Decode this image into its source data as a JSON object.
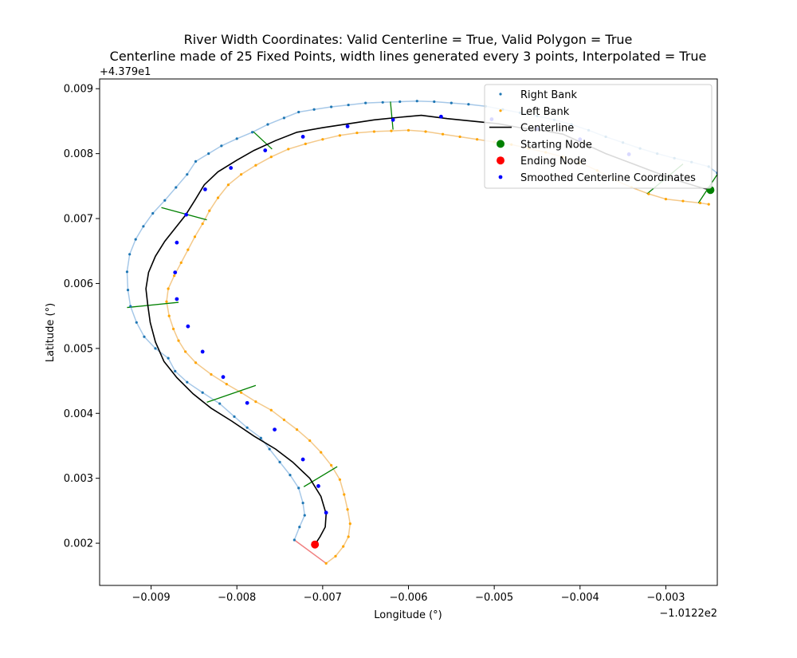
{
  "chart_data": {
    "type": "line",
    "title_line1": "River Width Coordinates: Valid Centerline = True, Valid Polygon = True",
    "title_line2": "Centerline made of 25 Fixed Points, width lines generated every 3 points, Interpolated = True",
    "xlabel": "Longitude (°)",
    "ylabel": "Latitude (°)",
    "x_offset_text": "−1.0122e2",
    "y_offset_text": "+4.379e1",
    "xlim": [
      -0.0096,
      -0.0024
    ],
    "ylim": [
      0.00135,
      0.00915
    ],
    "x_ticks": [
      -0.009,
      -0.008,
      -0.007,
      -0.006,
      -0.005,
      -0.004,
      -0.003
    ],
    "x_tick_labels": [
      "−0.009",
      "−0.008",
      "−0.007",
      "−0.006",
      "−0.005",
      "−0.004",
      "−0.003"
    ],
    "y_ticks": [
      0.002,
      0.003,
      0.004,
      0.005,
      0.006,
      0.007,
      0.008,
      0.009
    ],
    "y_tick_labels": [
      "0.002",
      "0.003",
      "0.004",
      "0.005",
      "0.006",
      "0.007",
      "0.008",
      "0.009"
    ],
    "legend_position": "upper right",
    "legend": [
      {
        "label": "Right Bank",
        "marker": "small-dot",
        "color": "#1f77b4"
      },
      {
        "label": "Left Bank",
        "marker": "small-dot",
        "color": "#ffa500"
      },
      {
        "label": "Centerline",
        "marker": "line",
        "color": "#000000"
      },
      {
        "label": "Starting Node",
        "marker": "big-dot",
        "color": "#008000"
      },
      {
        "label": "Ending Node",
        "marker": "big-dot",
        "color": "#ff0000"
      },
      {
        "label": "Smoothed Centerline Coordinates",
        "marker": "dot",
        "color": "#0000ff"
      }
    ],
    "colors": {
      "right_bank": "#1f77b4",
      "left_bank": "#ffa500",
      "right_bank_line": "#a6c8e8",
      "left_bank_line": "#f4c98a",
      "centerline": "#000000",
      "width_lines": "#008000",
      "end_connector": "#f08080",
      "start_node": "#008000",
      "end_node": "#ff0000",
      "smoothed": "#0000ff"
    },
    "right_bank": [
      [
        -0.00733,
        0.00205
      ],
      [
        -0.00727,
        0.00225
      ],
      [
        -0.00721,
        0.00243
      ],
      [
        -0.00723,
        0.00262
      ],
      [
        -0.00728,
        0.00285
      ],
      [
        -0.00738,
        0.00305
      ],
      [
        -0.0075,
        0.00325
      ],
      [
        -0.00762,
        0.00345
      ],
      [
        -0.00772,
        0.00362
      ],
      [
        -0.00788,
        0.00378
      ],
      [
        -0.00803,
        0.00395
      ],
      [
        -0.0082,
        0.00415
      ],
      [
        -0.0084,
        0.00432
      ],
      [
        -0.00858,
        0.00448
      ],
      [
        -0.00872,
        0.00465
      ],
      [
        -0.0088,
        0.00485
      ],
      [
        -0.00895,
        0.005
      ],
      [
        -0.00908,
        0.00518
      ],
      [
        -0.00917,
        0.0054
      ],
      [
        -0.00924,
        0.00565
      ],
      [
        -0.00927,
        0.0059
      ],
      [
        -0.00928,
        0.00618
      ],
      [
        -0.00925,
        0.00645
      ],
      [
        -0.00918,
        0.00668
      ],
      [
        -0.00909,
        0.00688
      ],
      [
        -0.00898,
        0.00708
      ],
      [
        -0.00884,
        0.00728
      ],
      [
        -0.00871,
        0.00748
      ],
      [
        -0.00858,
        0.00768
      ],
      [
        -0.00848,
        0.00788
      ],
      [
        -0.00833,
        0.008
      ],
      [
        -0.00818,
        0.00812
      ],
      [
        -0.008,
        0.00823
      ],
      [
        -0.00782,
        0.00833
      ],
      [
        -0.00764,
        0.00845
      ],
      [
        -0.00745,
        0.00855
      ],
      [
        -0.00728,
        0.00864
      ],
      [
        -0.0071,
        0.00868
      ],
      [
        -0.0069,
        0.00872
      ],
      [
        -0.0067,
        0.00875
      ],
      [
        -0.0065,
        0.00878
      ],
      [
        -0.0063,
        0.00879
      ],
      [
        -0.0061,
        0.0088
      ],
      [
        -0.0059,
        0.00881
      ],
      [
        -0.0057,
        0.0088
      ],
      [
        -0.0055,
        0.00878
      ],
      [
        -0.0053,
        0.00876
      ],
      [
        -0.0051,
        0.00873
      ],
      [
        -0.0049,
        0.00868
      ],
      [
        -0.0047,
        0.00863
      ],
      [
        -0.0045,
        0.00858
      ],
      [
        -0.0043,
        0.00852
      ],
      [
        -0.0041,
        0.00845
      ],
      [
        -0.0039,
        0.00836
      ],
      [
        -0.0037,
        0.00826
      ],
      [
        -0.0035,
        0.00817
      ],
      [
        -0.0033,
        0.00808
      ],
      [
        -0.0031,
        0.008
      ],
      [
        -0.0029,
        0.00793
      ],
      [
        -0.0027,
        0.00787
      ],
      [
        -0.0025,
        0.0078
      ],
      [
        -0.0024,
        0.0077
      ]
    ],
    "left_bank": [
      [
        -0.00696,
        0.00169
      ],
      [
        -0.00685,
        0.0018
      ],
      [
        -0.00676,
        0.00195
      ],
      [
        -0.0067,
        0.0021
      ],
      [
        -0.00668,
        0.0023
      ],
      [
        -0.00671,
        0.00252
      ],
      [
        -0.00675,
        0.00275
      ],
      [
        -0.0068,
        0.00298
      ],
      [
        -0.0069,
        0.0032
      ],
      [
        -0.00702,
        0.0034
      ],
      [
        -0.00715,
        0.00358
      ],
      [
        -0.0073,
        0.00375
      ],
      [
        -0.00745,
        0.0039
      ],
      [
        -0.0076,
        0.00405
      ],
      [
        -0.00778,
        0.00418
      ],
      [
        -0.00795,
        0.00432
      ],
      [
        -0.00812,
        0.00445
      ],
      [
        -0.0083,
        0.0046
      ],
      [
        -0.00848,
        0.00478
      ],
      [
        -0.0086,
        0.00495
      ],
      [
        -0.00868,
        0.00512
      ],
      [
        -0.00874,
        0.0053
      ],
      [
        -0.00879,
        0.0055
      ],
      [
        -0.00882,
        0.00572
      ],
      [
        -0.0088,
        0.00592
      ],
      [
        -0.00873,
        0.00612
      ],
      [
        -0.00865,
        0.00632
      ],
      [
        -0.00857,
        0.00652
      ],
      [
        -0.00849,
        0.00672
      ],
      [
        -0.0084,
        0.00692
      ],
      [
        -0.00832,
        0.00712
      ],
      [
        -0.00822,
        0.00732
      ],
      [
        -0.0081,
        0.00752
      ],
      [
        -0.00795,
        0.00768
      ],
      [
        -0.00778,
        0.00782
      ],
      [
        -0.0076,
        0.00795
      ],
      [
        -0.0074,
        0.00807
      ],
      [
        -0.0072,
        0.00815
      ],
      [
        -0.007,
        0.00822
      ],
      [
        -0.0068,
        0.00828
      ],
      [
        -0.0066,
        0.00832
      ],
      [
        -0.0064,
        0.00834
      ],
      [
        -0.0062,
        0.00835
      ],
      [
        -0.006,
        0.00836
      ],
      [
        -0.0058,
        0.00834
      ],
      [
        -0.0056,
        0.0083
      ],
      [
        -0.0054,
        0.00826
      ],
      [
        -0.0052,
        0.00822
      ],
      [
        -0.005,
        0.00818
      ],
      [
        -0.0048,
        0.00814
      ],
      [
        -0.0046,
        0.00808
      ],
      [
        -0.0044,
        0.00802
      ],
      [
        -0.0042,
        0.00795
      ],
      [
        -0.004,
        0.00786
      ],
      [
        -0.0038,
        0.00774
      ],
      [
        -0.0036,
        0.0076
      ],
      [
        -0.0034,
        0.00748
      ],
      [
        -0.0032,
        0.00738
      ],
      [
        -0.003,
        0.0073
      ],
      [
        -0.0028,
        0.00727
      ],
      [
        -0.0026,
        0.00724
      ],
      [
        -0.0025,
        0.00722
      ]
    ],
    "centerline": [
      [
        -0.00709,
        0.00198
      ],
      [
        -0.00703,
        0.0021
      ],
      [
        -0.00697,
        0.00225
      ],
      [
        -0.00696,
        0.00245
      ],
      [
        -0.00702,
        0.00272
      ],
      [
        -0.00715,
        0.003
      ],
      [
        -0.00735,
        0.00325
      ],
      [
        -0.00755,
        0.00345
      ],
      [
        -0.0078,
        0.00365
      ],
      [
        -0.00806,
        0.00388
      ],
      [
        -0.0083,
        0.00408
      ],
      [
        -0.00851,
        0.0043
      ],
      [
        -0.0087,
        0.00455
      ],
      [
        -0.00885,
        0.0048
      ],
      [
        -0.00895,
        0.0051
      ],
      [
        -0.00901,
        0.0054
      ],
      [
        -0.00904,
        0.00568
      ],
      [
        -0.00906,
        0.00592
      ],
      [
        -0.00903,
        0.00617
      ],
      [
        -0.00895,
        0.00642
      ],
      [
        -0.00884,
        0.00665
      ],
      [
        -0.00872,
        0.00685
      ],
      [
        -0.0086,
        0.00705
      ],
      [
        -0.00849,
        0.00728
      ],
      [
        -0.00838,
        0.00752
      ],
      [
        -0.00822,
        0.00772
      ],
      [
        -0.008,
        0.0079
      ],
      [
        -0.0078,
        0.00805
      ],
      [
        -0.00755,
        0.0082
      ],
      [
        -0.0073,
        0.00833
      ],
      [
        -0.007,
        0.0084
      ],
      [
        -0.0067,
        0.00846
      ],
      [
        -0.0064,
        0.00852
      ],
      [
        -0.0061,
        0.00856
      ],
      [
        -0.00585,
        0.00859
      ],
      [
        -0.00555,
        0.00854
      ],
      [
        -0.00525,
        0.0085
      ],
      [
        -0.00495,
        0.00846
      ],
      [
        -0.0047,
        0.0084
      ],
      [
        -0.00445,
        0.00836
      ],
      [
        -0.0042,
        0.0083
      ],
      [
        -0.00395,
        0.00815
      ],
      [
        -0.0037,
        0.008
      ],
      [
        -0.0034,
        0.00785
      ],
      [
        -0.0031,
        0.0077
      ],
      [
        -0.00285,
        0.00758
      ],
      [
        -0.0026,
        0.00748
      ],
      [
        -0.00248,
        0.00744
      ]
    ],
    "smoothed_centerline": [
      [
        -0.00709,
        0.00198
      ],
      [
        -0.00696,
        0.00247
      ],
      [
        -0.00705,
        0.00288
      ],
      [
        -0.00723,
        0.00329
      ],
      [
        -0.00756,
        0.00375
      ],
      [
        -0.00788,
        0.00416
      ],
      [
        -0.00816,
        0.00456
      ],
      [
        -0.0084,
        0.00495
      ],
      [
        -0.00857,
        0.00534
      ],
      [
        -0.0087,
        0.00576
      ],
      [
        -0.00872,
        0.00617
      ],
      [
        -0.0087,
        0.00663
      ],
      [
        -0.00859,
        0.00706
      ],
      [
        -0.00837,
        0.00745
      ],
      [
        -0.00807,
        0.00778
      ],
      [
        -0.00767,
        0.00805
      ],
      [
        -0.00723,
        0.00826
      ],
      [
        -0.00671,
        0.00842
      ],
      [
        -0.00618,
        0.00852
      ],
      [
        -0.00562,
        0.00857
      ],
      [
        -0.00503,
        0.00853
      ],
      [
        -0.0045,
        0.00838
      ],
      [
        -0.004,
        0.00822
      ],
      [
        -0.00343,
        0.00799
      ],
      [
        -0.00248,
        0.00744
      ]
    ],
    "width_lines": [
      [
        [
          -0.00722,
          0.00287
        ],
        [
          -0.00683,
          0.00318
        ]
      ],
      [
        [
          -0.00835,
          0.00417
        ],
        [
          -0.00778,
          0.00443
        ]
      ],
      [
        [
          -0.00928,
          0.00563
        ],
        [
          -0.00868,
          0.00571
        ]
      ],
      [
        [
          -0.00888,
          0.00717
        ],
        [
          -0.00835,
          0.00698
        ]
      ],
      [
        [
          -0.00781,
          0.00834
        ],
        [
          -0.00759,
          0.00807
        ]
      ],
      [
        [
          -0.00621,
          0.0088
        ],
        [
          -0.00618,
          0.00837
        ]
      ],
      [
        [
          -0.00322,
          0.00738
        ],
        [
          -0.0028,
          0.00784
        ]
      ],
      [
        [
          -0.00262,
          0.00724
        ],
        [
          -0.00237,
          0.00774
        ]
      ]
    ],
    "end_connector": [
      [
        -0.00733,
        0.00205
      ],
      [
        -0.00696,
        0.00169
      ]
    ],
    "start_node": [
      -0.00248,
      0.00744
    ],
    "end_node": [
      -0.00709,
      0.00198
    ]
  }
}
